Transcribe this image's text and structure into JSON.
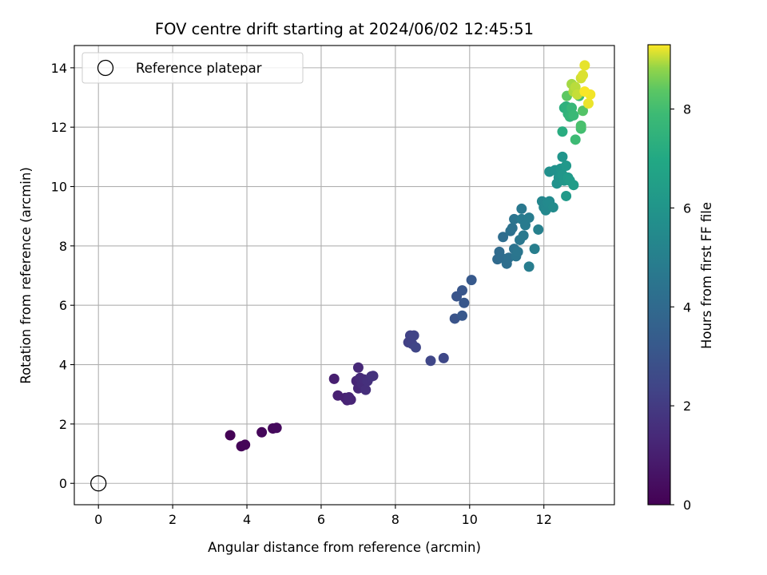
{
  "chart_data": {
    "type": "scatter",
    "title": "FOV centre drift starting at 2024/06/02 12:45:51",
    "xlabel": "Angular distance from reference (arcmin)",
    "ylabel": "Rotation from reference (arcmin)",
    "xlim": [
      -0.65,
      13.9
    ],
    "ylim": [
      -0.72,
      14.75
    ],
    "xticks": [
      0,
      2,
      4,
      6,
      8,
      10,
      12
    ],
    "yticks": [
      0,
      2,
      4,
      6,
      8,
      10,
      12,
      14
    ],
    "grid": true,
    "legend": {
      "placement": "top-left",
      "entries": [
        "Reference platepar"
      ]
    },
    "reference_point": {
      "name": "Reference platepar",
      "x": 0,
      "y": 0,
      "marker": "open-circle"
    },
    "colorbar": {
      "label": "Hours from first FF file",
      "colormap": "viridis",
      "range": [
        0,
        9.3
      ],
      "ticks": [
        0,
        2,
        4,
        6,
        8
      ]
    },
    "points": [
      [
        3.55,
        1.62,
        0.05
      ],
      [
        3.85,
        1.25,
        0.1
      ],
      [
        3.95,
        1.3,
        0.15
      ],
      [
        4.4,
        1.72,
        0.2
      ],
      [
        4.7,
        1.85,
        0.25
      ],
      [
        4.8,
        1.87,
        0.3
      ],
      [
        6.35,
        3.52,
        1.0
      ],
      [
        6.45,
        2.96,
        1.05
      ],
      [
        6.65,
        2.88,
        1.1
      ],
      [
        6.7,
        2.8,
        1.15
      ],
      [
        6.8,
        2.82,
        1.2
      ],
      [
        6.75,
        2.9,
        1.22
      ],
      [
        6.95,
        3.45,
        1.25
      ],
      [
        7.0,
        3.2,
        1.3
      ],
      [
        7.0,
        3.9,
        1.35
      ],
      [
        7.05,
        3.55,
        1.4
      ],
      [
        7.1,
        3.35,
        1.45
      ],
      [
        7.15,
        3.5,
        1.5
      ],
      [
        7.2,
        3.15,
        1.55
      ],
      [
        7.25,
        3.45,
        1.6
      ],
      [
        7.35,
        3.6,
        1.65
      ],
      [
        7.4,
        3.62,
        1.7
      ],
      [
        8.35,
        4.75,
        2.2
      ],
      [
        8.4,
        4.98,
        2.25
      ],
      [
        8.45,
        4.7,
        2.3
      ],
      [
        8.5,
        4.98,
        2.35
      ],
      [
        8.55,
        4.58,
        2.4
      ],
      [
        8.95,
        4.13,
        2.45
      ],
      [
        9.3,
        4.22,
        2.5
      ],
      [
        9.6,
        5.55,
        3.0
      ],
      [
        9.65,
        6.3,
        3.05
      ],
      [
        9.8,
        6.5,
        3.1
      ],
      [
        9.85,
        6.08,
        3.15
      ],
      [
        9.8,
        5.65,
        3.2
      ],
      [
        10.05,
        6.85,
        3.25
      ],
      [
        10.75,
        7.55,
        4.0
      ],
      [
        10.8,
        7.8,
        4.05
      ],
      [
        10.85,
        7.6,
        4.1
      ],
      [
        10.9,
        8.3,
        4.15
      ],
      [
        11.0,
        7.4,
        4.2
      ],
      [
        11.05,
        7.6,
        4.25
      ],
      [
        11.1,
        8.5,
        4.3
      ],
      [
        11.15,
        8.6,
        4.35
      ],
      [
        11.2,
        7.9,
        4.4
      ],
      [
        11.2,
        8.9,
        4.45
      ],
      [
        11.25,
        7.65,
        4.5
      ],
      [
        11.3,
        7.8,
        4.55
      ],
      [
        11.35,
        8.2,
        4.6
      ],
      [
        11.4,
        9.25,
        4.65
      ],
      [
        11.45,
        8.35,
        4.7
      ],
      [
        11.4,
        8.9,
        4.75
      ],
      [
        11.5,
        8.7,
        4.8
      ],
      [
        11.6,
        8.95,
        4.85
      ],
      [
        11.6,
        7.3,
        4.9
      ],
      [
        11.75,
        7.9,
        4.95
      ],
      [
        11.85,
        8.55,
        5.0
      ],
      [
        11.95,
        9.5,
        5.3
      ],
      [
        12.0,
        9.3,
        5.35
      ],
      [
        12.05,
        9.2,
        5.4
      ],
      [
        12.1,
        9.45,
        5.45
      ],
      [
        12.15,
        9.5,
        5.5
      ],
      [
        12.25,
        9.3,
        5.55
      ],
      [
        12.15,
        10.5,
        5.75
      ],
      [
        12.3,
        10.55,
        5.8
      ],
      [
        12.35,
        10.1,
        5.85
      ],
      [
        12.4,
        10.3,
        5.9
      ],
      [
        12.45,
        10.6,
        5.95
      ],
      [
        12.5,
        11.0,
        6.0
      ],
      [
        12.5,
        10.4,
        6.05
      ],
      [
        12.55,
        10.2,
        6.1
      ],
      [
        12.6,
        10.7,
        6.15
      ],
      [
        12.6,
        9.68,
        6.2
      ],
      [
        12.65,
        10.3,
        6.25
      ],
      [
        12.7,
        10.2,
        6.3
      ],
      [
        12.8,
        10.05,
        6.35
      ],
      [
        12.5,
        11.85,
        7.2
      ],
      [
        12.55,
        12.65,
        7.3
      ],
      [
        12.6,
        12.7,
        7.4
      ],
      [
        12.65,
        12.45,
        7.5
      ],
      [
        12.7,
        12.35,
        7.6
      ],
      [
        12.75,
        12.65,
        7.7
      ],
      [
        12.8,
        12.4,
        7.8
      ],
      [
        12.85,
        11.58,
        7.9
      ],
      [
        12.95,
        13.05,
        8.0
      ],
      [
        13.0,
        11.95,
        8.1
      ],
      [
        13.0,
        12.05,
        8.2
      ],
      [
        13.05,
        12.55,
        8.3
      ],
      [
        12.62,
        13.05,
        8.4
      ],
      [
        12.75,
        13.45,
        8.9
      ],
      [
        12.8,
        13.2,
        8.95
      ],
      [
        12.85,
        13.35,
        9.0
      ],
      [
        12.9,
        13.1,
        9.05
      ],
      [
        13.0,
        13.65,
        9.1
      ],
      [
        13.05,
        13.75,
        9.15
      ],
      [
        13.1,
        14.08,
        9.2
      ],
      [
        13.2,
        12.8,
        9.22
      ],
      [
        13.25,
        13.1,
        9.25
      ],
      [
        13.1,
        13.2,
        9.28
      ]
    ]
  }
}
